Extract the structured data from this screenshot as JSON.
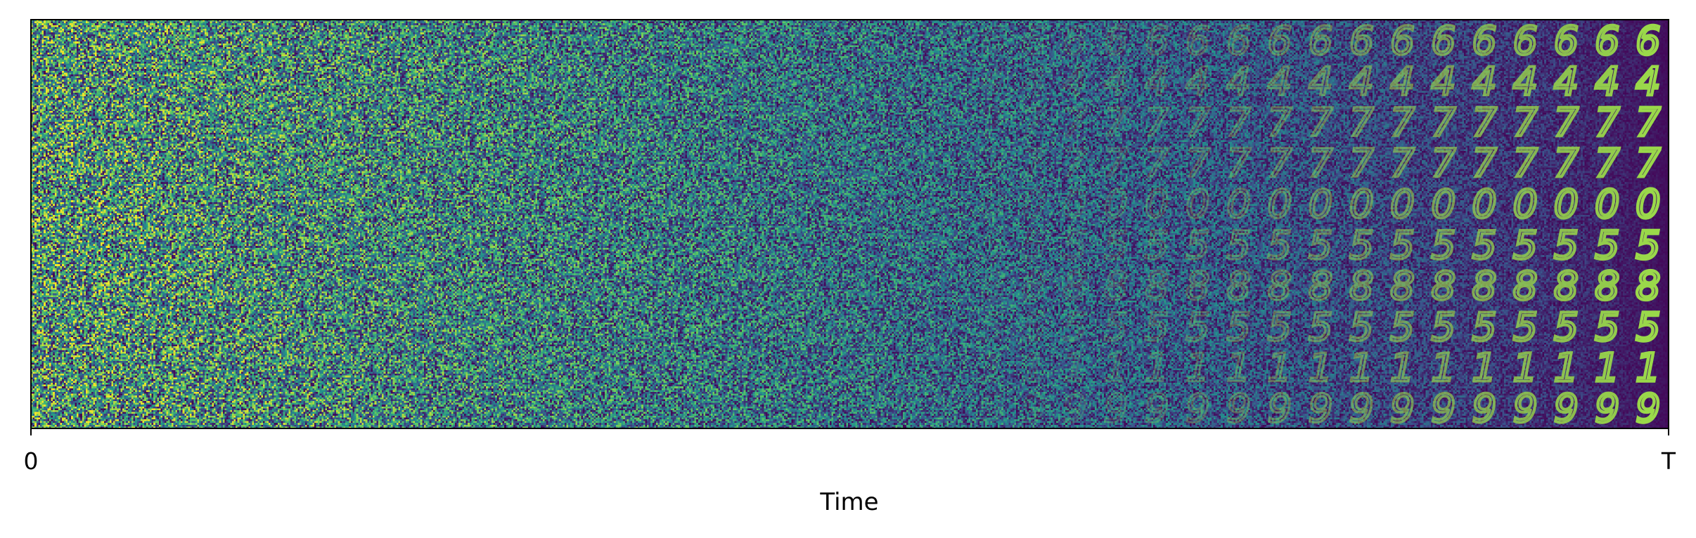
{
  "chart_data": {
    "type": "heatmap",
    "title": "",
    "xlabel": "Time",
    "ylabel": "",
    "x_ticks": [
      "0",
      "T"
    ],
    "y_ticks": [],
    "colormap": "viridis",
    "colormap_colors": [
      "#440154",
      "#3b528b",
      "#21918c",
      "#5ec962",
      "#fde725"
    ],
    "grid": false,
    "columns": 40,
    "rows": [
      {
        "digit": "6"
      },
      {
        "digit": "4"
      },
      {
        "digit": "7"
      },
      {
        "digit": "7"
      },
      {
        "digit": "0"
      },
      {
        "digit": "5"
      },
      {
        "digit": "8"
      },
      {
        "digit": "5"
      },
      {
        "digit": "1"
      },
      {
        "digit": "9"
      }
    ],
    "noise_schedule": "noise decreases from pure noise at time 0 to clean digit images at time T"
  }
}
